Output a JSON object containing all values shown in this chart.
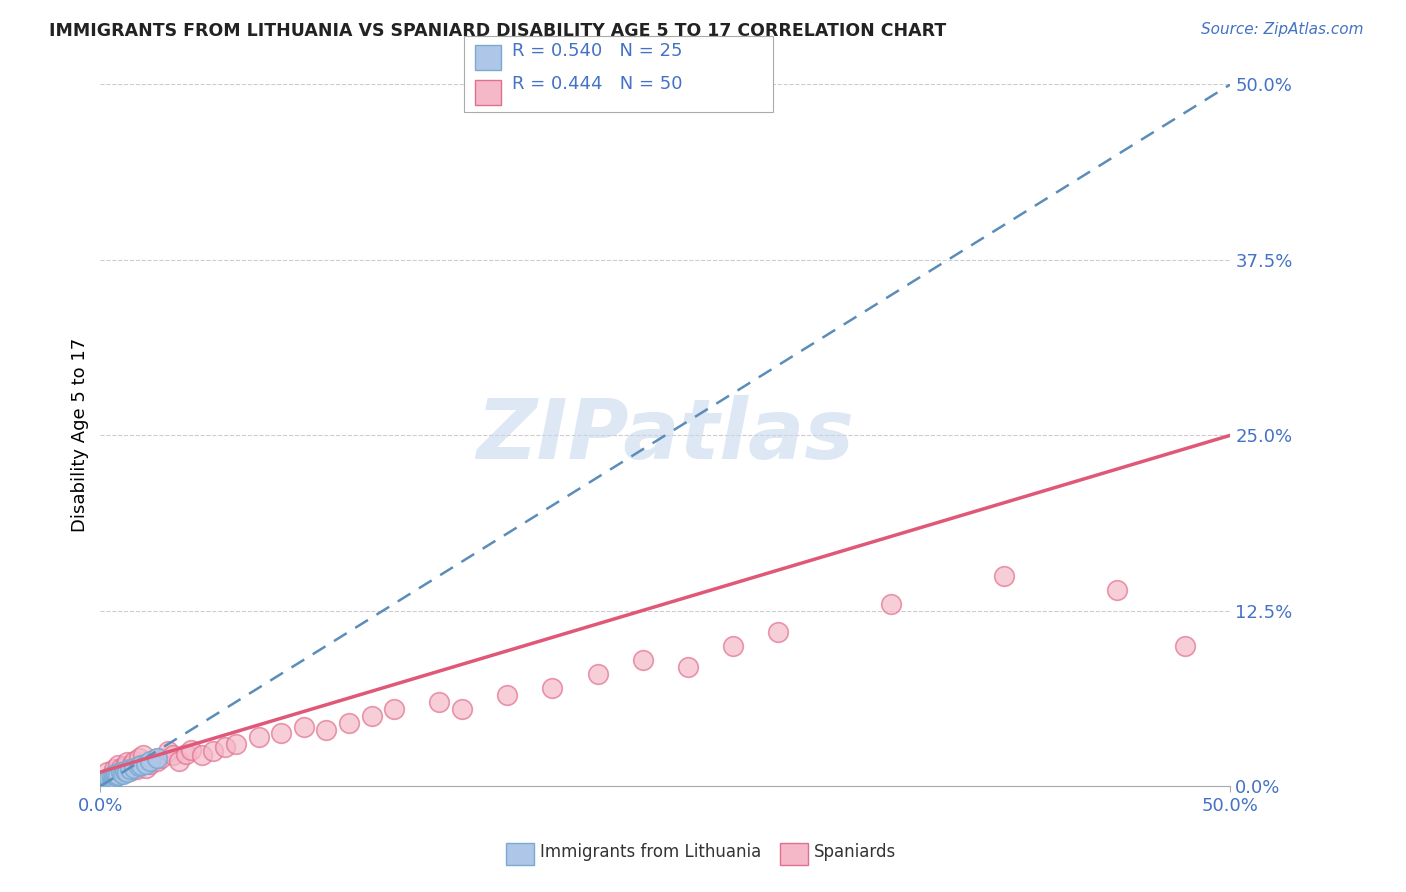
{
  "title": "IMMIGRANTS FROM LITHUANIA VS SPANIARD DISABILITY AGE 5 TO 17 CORRELATION CHART",
  "source_text": "Source: ZipAtlas.com",
  "ylabel": "Disability Age 5 to 17",
  "xmin": 0.0,
  "xmax": 0.5,
  "ymin": 0.0,
  "ymax": 0.5,
  "ytick_labels": [
    "0.0%",
    "12.5%",
    "25.0%",
    "37.5%",
    "50.0%"
  ],
  "ytick_values": [
    0.0,
    0.125,
    0.25,
    0.375,
    0.5
  ],
  "series1_name": "Immigrants from Lithuania",
  "series1_color": "#aec6e8",
  "series1_edge_color": "#7aaad0",
  "series1_R": 0.54,
  "series1_N": 25,
  "series1_line_color": "#5b8db8",
  "series1_line_style": "--",
  "series2_name": "Spaniards",
  "series2_color": "#f5b8c8",
  "series2_edge_color": "#e07090",
  "series2_R": 0.444,
  "series2_N": 50,
  "series2_line_color": "#e05878",
  "series2_line_style": "-",
  "background_color": "#ffffff",
  "grid_color": "#cccccc",
  "title_color": "#222222",
  "label_color": "#4472c4",
  "watermark_color": "#c8d8ee",
  "series1_x": [
    0.001,
    0.002,
    0.002,
    0.003,
    0.003,
    0.004,
    0.004,
    0.005,
    0.005,
    0.006,
    0.006,
    0.007,
    0.007,
    0.008,
    0.009,
    0.01,
    0.011,
    0.012,
    0.013,
    0.015,
    0.017,
    0.018,
    0.02,
    0.022,
    0.025
  ],
  "series1_y": [
    0.002,
    0.003,
    0.004,
    0.003,
    0.005,
    0.004,
    0.006,
    0.005,
    0.007,
    0.006,
    0.008,
    0.007,
    0.009,
    0.008,
    0.01,
    0.009,
    0.011,
    0.01,
    0.012,
    0.013,
    0.014,
    0.015,
    0.016,
    0.018,
    0.02
  ],
  "series2_x": [
    0.003,
    0.005,
    0.006,
    0.007,
    0.008,
    0.009,
    0.01,
    0.011,
    0.012,
    0.013,
    0.014,
    0.015,
    0.016,
    0.017,
    0.018,
    0.019,
    0.02,
    0.022,
    0.024,
    0.025,
    0.027,
    0.03,
    0.032,
    0.035,
    0.038,
    0.04,
    0.045,
    0.05,
    0.055,
    0.06,
    0.07,
    0.08,
    0.09,
    0.1,
    0.11,
    0.12,
    0.13,
    0.15,
    0.16,
    0.18,
    0.2,
    0.22,
    0.24,
    0.26,
    0.28,
    0.3,
    0.35,
    0.4,
    0.45,
    0.48
  ],
  "series2_y": [
    0.01,
    0.008,
    0.012,
    0.009,
    0.015,
    0.013,
    0.01,
    0.014,
    0.017,
    0.011,
    0.016,
    0.018,
    0.012,
    0.02,
    0.015,
    0.022,
    0.013,
    0.016,
    0.019,
    0.018,
    0.02,
    0.025,
    0.022,
    0.018,
    0.023,
    0.026,
    0.022,
    0.025,
    0.028,
    0.03,
    0.035,
    0.038,
    0.042,
    0.04,
    0.045,
    0.05,
    0.055,
    0.06,
    0.055,
    0.065,
    0.07,
    0.08,
    0.09,
    0.085,
    0.1,
    0.11,
    0.13,
    0.15,
    0.14,
    0.1
  ],
  "blue_line_x0": 0.0,
  "blue_line_y0": 0.0,
  "blue_line_x1": 0.5,
  "blue_line_y1": 0.5,
  "pink_line_x0": 0.0,
  "pink_line_y0": 0.01,
  "pink_line_x1": 0.5,
  "pink_line_y1": 0.25
}
